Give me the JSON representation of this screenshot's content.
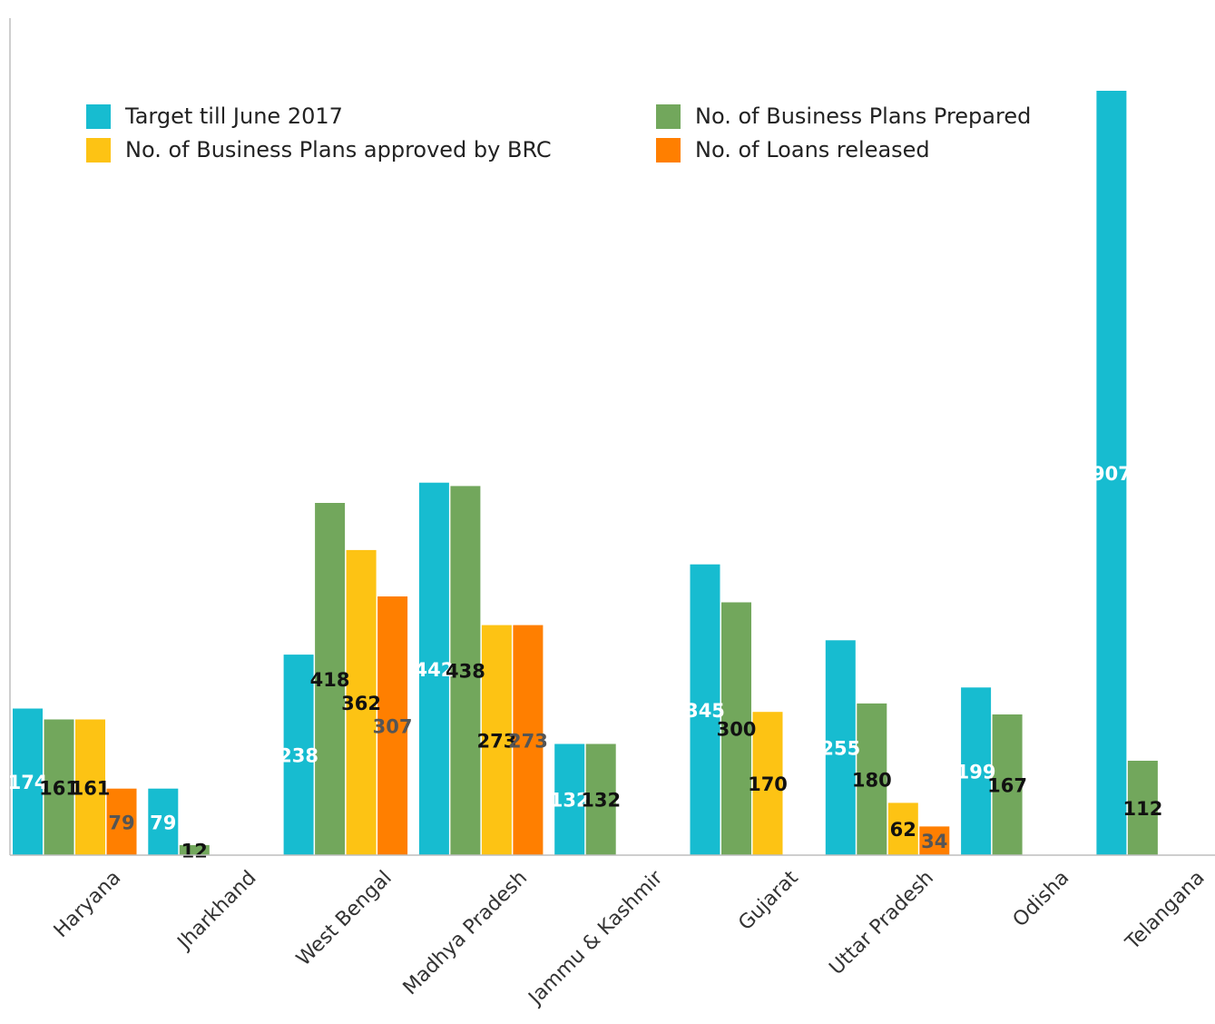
{
  "chart_data": {
    "type": "bar",
    "title": "",
    "xlabel": "",
    "ylabel": "",
    "ylim": [
      0,
      907
    ],
    "grid": false,
    "legend_position": "top",
    "categories": [
      "Haryana",
      "Jharkhand",
      "West Bengal",
      "Madhya Pradesh",
      "Jammu & Kashmir",
      "Gujarat",
      "Uttar Pradesh",
      "Odisha",
      "Telangana"
    ],
    "series": [
      {
        "name": "Target till June 2017",
        "color": "#17BCD0",
        "label_color": "#ffffff",
        "values": [
          174,
          79,
          238,
          442,
          132,
          345,
          255,
          199,
          907
        ]
      },
      {
        "name": "No. of Business Plans Prepared",
        "color": "#72A75C",
        "label_color": "#111111",
        "values": [
          161,
          12,
          418,
          438,
          132,
          300,
          180,
          167,
          112
        ]
      },
      {
        "name": "No. of Business Plans approved by BRC",
        "color": "#FDC314",
        "label_color": "#111111",
        "values": [
          161,
          null,
          362,
          273,
          null,
          170,
          62,
          null,
          null
        ]
      },
      {
        "name": "No. of Loans released",
        "color": "#FF7F00",
        "label_color": "#555555",
        "values": [
          79,
          null,
          307,
          273,
          null,
          null,
          34,
          null,
          null
        ]
      }
    ]
  }
}
